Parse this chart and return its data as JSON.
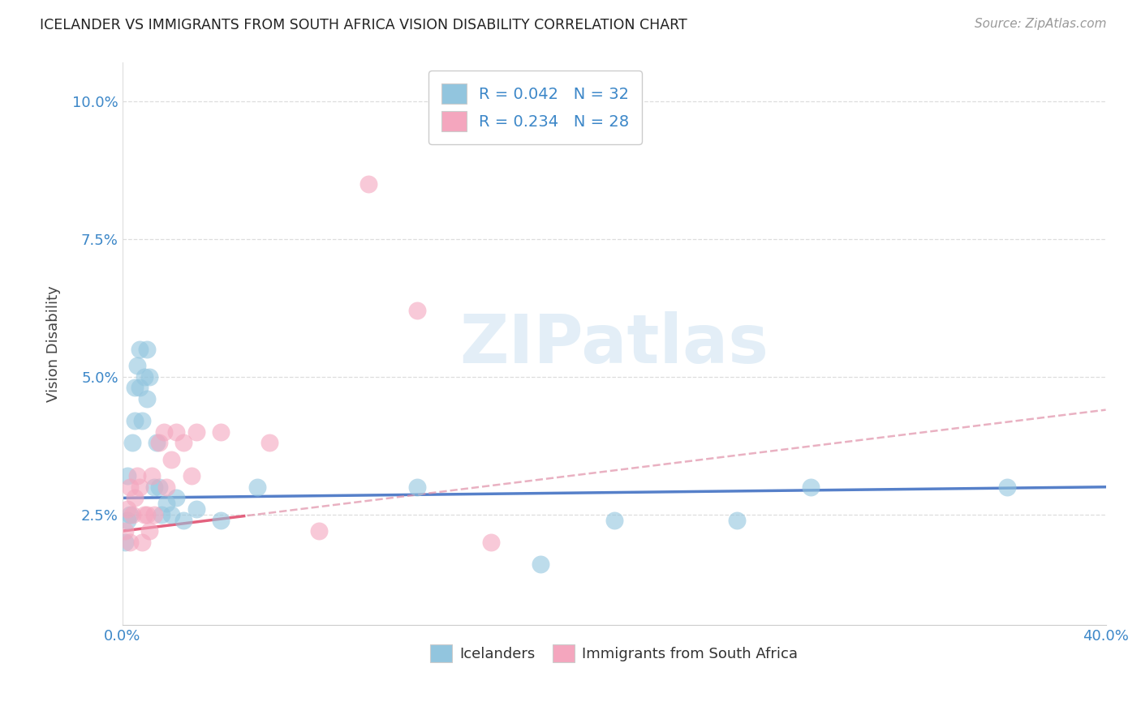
{
  "title": "ICELANDER VS IMMIGRANTS FROM SOUTH AFRICA VISION DISABILITY CORRELATION CHART",
  "source": "Source: ZipAtlas.com",
  "ylabel": "Vision Disability",
  "xlim": [
    0.0,
    0.4
  ],
  "ylim": [
    0.005,
    0.107
  ],
  "yticks": [
    0.025,
    0.05,
    0.075,
    0.1
  ],
  "ytick_labels": [
    "2.5%",
    "5.0%",
    "7.5%",
    "10.0%"
  ],
  "xticks": [
    0.0,
    0.1,
    0.2,
    0.3,
    0.4
  ],
  "xtick_labels": [
    "0.0%",
    "",
    "",
    "",
    "40.0%"
  ],
  "R_ice": 0.042,
  "N_ice": 32,
  "R_imm": 0.234,
  "N_imm": 28,
  "blue_scatter_color": "#92c5de",
  "pink_scatter_color": "#f4a6be",
  "blue_line_color": "#4472c4",
  "pink_line_color": "#e05070",
  "pink_dash_color": "#e090a8",
  "watermark_text": "ZIPatlas",
  "watermark_color": "#c8dff0",
  "icelanders_x": [
    0.001,
    0.002,
    0.002,
    0.003,
    0.004,
    0.005,
    0.005,
    0.006,
    0.007,
    0.007,
    0.008,
    0.009,
    0.01,
    0.01,
    0.011,
    0.013,
    0.014,
    0.015,
    0.016,
    0.018,
    0.02,
    0.022,
    0.025,
    0.03,
    0.04,
    0.055,
    0.12,
    0.17,
    0.2,
    0.25,
    0.28,
    0.36
  ],
  "icelanders_y": [
    0.02,
    0.024,
    0.032,
    0.025,
    0.038,
    0.042,
    0.048,
    0.052,
    0.055,
    0.048,
    0.042,
    0.05,
    0.046,
    0.055,
    0.05,
    0.03,
    0.038,
    0.03,
    0.025,
    0.027,
    0.025,
    0.028,
    0.024,
    0.026,
    0.024,
    0.03,
    0.03,
    0.016,
    0.024,
    0.024,
    0.03,
    0.03
  ],
  "immigrants_x": [
    0.001,
    0.002,
    0.003,
    0.003,
    0.004,
    0.005,
    0.006,
    0.007,
    0.008,
    0.009,
    0.01,
    0.011,
    0.012,
    0.013,
    0.015,
    0.017,
    0.018,
    0.02,
    0.022,
    0.025,
    0.028,
    0.03,
    0.04,
    0.06,
    0.08,
    0.1,
    0.12,
    0.15
  ],
  "immigrants_y": [
    0.022,
    0.026,
    0.02,
    0.03,
    0.025,
    0.028,
    0.032,
    0.03,
    0.02,
    0.025,
    0.025,
    0.022,
    0.032,
    0.025,
    0.038,
    0.04,
    0.03,
    0.035,
    0.04,
    0.038,
    0.032,
    0.04,
    0.04,
    0.038,
    0.022,
    0.085,
    0.062,
    0.02
  ],
  "ice_slope": 0.005,
  "ice_intercept": 0.028,
  "imm_slope": 0.055,
  "imm_intercept": 0.022
}
